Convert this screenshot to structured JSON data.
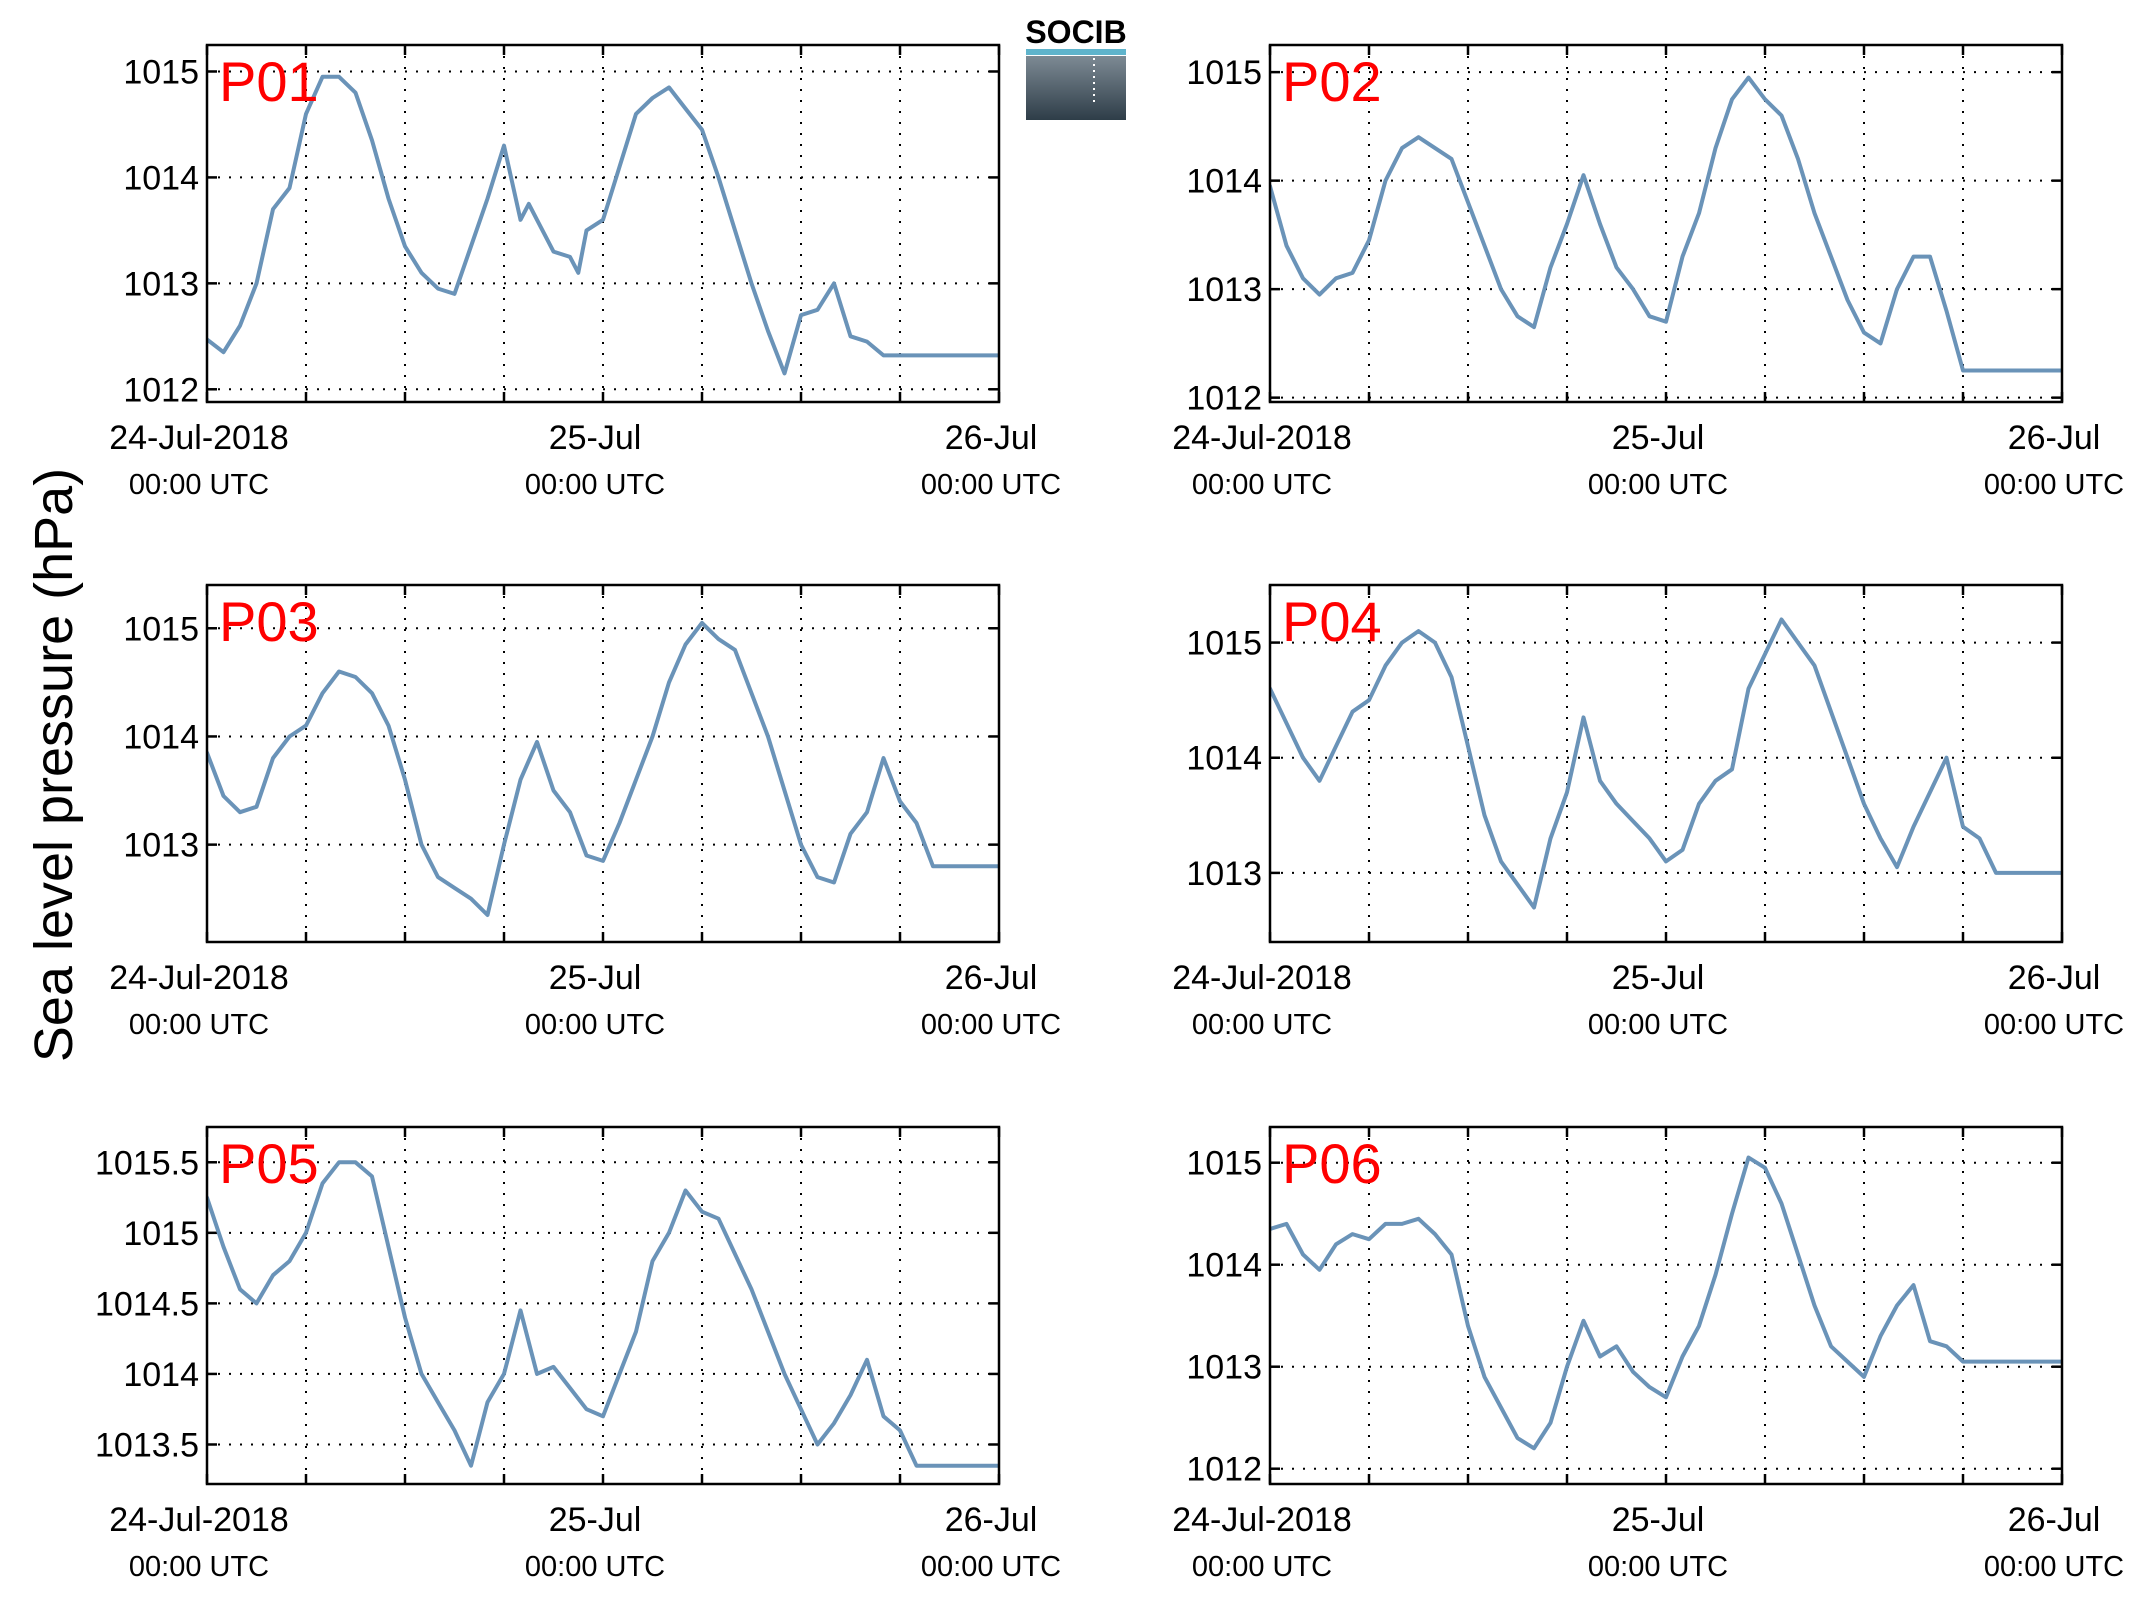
{
  "figure": {
    "ylabel": "Sea level pressure (hPa)",
    "logo_text": "SOCIB",
    "panel_label_color": "#ff0000",
    "line_color": "#6a93b8",
    "logo_colors": {
      "text": "#5fb4cc",
      "top": "#7d8a94",
      "bottom": "#2e3d48",
      "band": "#5fb4cc"
    }
  },
  "chart_data": [
    {
      "type": "line",
      "label": "P01",
      "title": "",
      "xlabel": "",
      "ylabel": "Sea level pressure (hPa)",
      "xlim": [
        0,
        48
      ],
      "ylim": [
        1011.88,
        1015.25
      ],
      "xticks": [
        0,
        24,
        48
      ],
      "xtick_labels": [
        [
          "24-Jul-2018",
          "00:00 UTC"
        ],
        [
          "25-Jul",
          "00:00 UTC"
        ],
        [
          "26-Jul",
          "00:00 UTC"
        ]
      ],
      "yticks": [
        1012,
        1013,
        1014,
        1015
      ],
      "ytick_labels": [
        "1012",
        "1013",
        "1014",
        "1015"
      ],
      "grid": true,
      "x_unit": "hours since 24-Jul-2018 00:00 UTC",
      "series": [
        {
          "x": [
            0,
            1,
            2,
            3,
            4,
            5,
            6,
            7,
            8,
            9,
            10,
            11,
            12,
            13,
            14,
            15,
            16,
            17,
            18,
            19,
            19.5,
            20,
            21,
            22,
            22.5,
            23,
            24,
            25,
            26,
            27,
            28,
            29,
            30,
            31,
            32,
            33,
            34,
            35,
            36,
            37,
            38,
            39,
            40,
            41,
            42,
            43,
            44,
            45,
            46,
            47,
            48
          ],
          "y": [
            1012.47,
            1012.35,
            1012.6,
            1013.0,
            1013.7,
            1013.9,
            1014.6,
            1014.95,
            1014.95,
            1014.8,
            1014.35,
            1013.8,
            1013.35,
            1013.1,
            1012.95,
            1012.9,
            1013.35,
            1013.8,
            1014.3,
            1013.6,
            1013.75,
            1013.6,
            1013.3,
            1013.25,
            1013.1,
            1013.5,
            1013.6,
            1014.1,
            1014.6,
            1014.75,
            1014.85,
            1014.65,
            1014.45,
            1014.0,
            1013.5,
            1013.0,
            1012.55,
            1012.15,
            1012.7,
            1012.75,
            1013.0,
            1012.5,
            1012.45,
            1012.32,
            1012.32,
            1012.32,
            1012.32,
            1012.32,
            1012.32,
            1012.32,
            1012.32
          ]
        }
      ]
    },
    {
      "type": "line",
      "label": "P02",
      "title": "",
      "xlabel": "",
      "ylabel": "Sea level pressure (hPa)",
      "xlim": [
        0,
        48
      ],
      "ylim": [
        1011.96,
        1015.25
      ],
      "xticks": [
        0,
        24,
        48
      ],
      "xtick_labels": [
        [
          "24-Jul-2018",
          "00:00 UTC"
        ],
        [
          "25-Jul",
          "00:00 UTC"
        ],
        [
          "26-Jul",
          "00:00 UTC"
        ]
      ],
      "yticks": [
        1012,
        1013,
        1014,
        1015
      ],
      "ytick_labels": [
        "1012",
        "1013",
        "1014",
        "1015"
      ],
      "grid": true,
      "x_unit": "hours since 24-Jul-2018 00:00 UTC",
      "series": [
        {
          "x": [
            0,
            1,
            2,
            3,
            4,
            5,
            6,
            7,
            8,
            9,
            10,
            11,
            12,
            13,
            14,
            15,
            16,
            17,
            18,
            19,
            20,
            21,
            22,
            23,
            24,
            25,
            26,
            27,
            28,
            29,
            30,
            31,
            32,
            33,
            34,
            35,
            36,
            37,
            38,
            39,
            40,
            41,
            42,
            43,
            44,
            45,
            46,
            47,
            48
          ],
          "y": [
            1013.95,
            1013.4,
            1013.1,
            1012.95,
            1013.1,
            1013.15,
            1013.45,
            1014.0,
            1014.3,
            1014.4,
            1014.3,
            1014.2,
            1013.8,
            1013.4,
            1013.0,
            1012.75,
            1012.65,
            1013.2,
            1013.6,
            1014.05,
            1013.6,
            1013.2,
            1013.0,
            1012.75,
            1012.7,
            1013.3,
            1013.7,
            1014.3,
            1014.75,
            1014.95,
            1014.75,
            1014.6,
            1014.2,
            1013.7,
            1013.3,
            1012.9,
            1012.6,
            1012.5,
            1013.0,
            1013.3,
            1013.3,
            1012.8,
            1012.25,
            1012.25,
            1012.25,
            1012.25,
            1012.25,
            1012.25,
            1012.25
          ]
        }
      ]
    },
    {
      "type": "line",
      "label": "P03",
      "title": "",
      "xlabel": "",
      "ylabel": "Sea level pressure (hPa)",
      "xlim": [
        0,
        48
      ],
      "ylim": [
        1012.1,
        1015.4
      ],
      "xticks": [
        0,
        24,
        48
      ],
      "xtick_labels": [
        [
          "24-Jul-2018",
          "00:00 UTC"
        ],
        [
          "25-Jul",
          "00:00 UTC"
        ],
        [
          "26-Jul",
          "00:00 UTC"
        ]
      ],
      "yticks": [
        1013,
        1014,
        1015
      ],
      "ytick_labels": [
        "1013",
        "1014",
        "1015"
      ],
      "grid": true,
      "x_unit": "hours since 24-Jul-2018 00:00 UTC",
      "series": [
        {
          "x": [
            0,
            1,
            2,
            3,
            4,
            5,
            6,
            7,
            8,
            9,
            10,
            11,
            12,
            13,
            14,
            15,
            16,
            17,
            18,
            19,
            20,
            21,
            22,
            23,
            24,
            25,
            26,
            27,
            28,
            29,
            30,
            31,
            32,
            33,
            34,
            35,
            36,
            37,
            38,
            39,
            40,
            41,
            42,
            43,
            44,
            45,
            46,
            47,
            48
          ],
          "y": [
            1013.85,
            1013.45,
            1013.3,
            1013.35,
            1013.8,
            1014.0,
            1014.1,
            1014.4,
            1014.6,
            1014.55,
            1014.4,
            1014.1,
            1013.6,
            1013.0,
            1012.7,
            1012.6,
            1012.5,
            1012.35,
            1013.0,
            1013.6,
            1013.95,
            1013.5,
            1013.3,
            1012.9,
            1012.85,
            1013.2,
            1013.6,
            1014.0,
            1014.5,
            1014.85,
            1015.05,
            1014.9,
            1014.8,
            1014.4,
            1014.0,
            1013.5,
            1013.0,
            1012.7,
            1012.65,
            1013.1,
            1013.3,
            1013.8,
            1013.4,
            1013.2,
            1012.8,
            1012.8,
            1012.8,
            1012.8,
            1012.8
          ]
        }
      ]
    },
    {
      "type": "line",
      "label": "P04",
      "title": "",
      "xlabel": "",
      "ylabel": "Sea level pressure (hPa)",
      "xlim": [
        0,
        48
      ],
      "ylim": [
        1012.4,
        1015.5
      ],
      "xticks": [
        0,
        24,
        48
      ],
      "xtick_labels": [
        [
          "24-Jul-2018",
          "00:00 UTC"
        ],
        [
          "25-Jul",
          "00:00 UTC"
        ],
        [
          "26-Jul",
          "00:00 UTC"
        ]
      ],
      "yticks": [
        1013,
        1014,
        1015
      ],
      "ytick_labels": [
        "1013",
        "1014",
        "1015"
      ],
      "grid": true,
      "x_unit": "hours since 24-Jul-2018 00:00 UTC",
      "series": [
        {
          "x": [
            0,
            1,
            2,
            3,
            4,
            5,
            6,
            7,
            8,
            9,
            10,
            11,
            12,
            13,
            14,
            15,
            16,
            17,
            18,
            19,
            20,
            21,
            22,
            23,
            24,
            25,
            26,
            27,
            28,
            29,
            30,
            31,
            32,
            33,
            34,
            35,
            36,
            37,
            38,
            39,
            40,
            41,
            42,
            43,
            44,
            45,
            46,
            47,
            48
          ],
          "y": [
            1014.6,
            1014.3,
            1014.0,
            1013.8,
            1014.1,
            1014.4,
            1014.5,
            1014.8,
            1015.0,
            1015.1,
            1015.0,
            1014.7,
            1014.1,
            1013.5,
            1013.1,
            1012.9,
            1012.7,
            1013.3,
            1013.7,
            1014.35,
            1013.8,
            1013.6,
            1013.45,
            1013.3,
            1013.1,
            1013.2,
            1013.6,
            1013.8,
            1013.9,
            1014.6,
            1014.9,
            1015.2,
            1015.0,
            1014.8,
            1014.4,
            1014.0,
            1013.6,
            1013.3,
            1013.05,
            1013.4,
            1013.7,
            1014.0,
            1013.4,
            1013.3,
            1013.0,
            1013.0,
            1013.0,
            1013.0,
            1013.0
          ]
        }
      ]
    },
    {
      "type": "line",
      "label": "P05",
      "title": "",
      "xlabel": "",
      "ylabel": "Sea level pressure (hPa)",
      "xlim": [
        0,
        48
      ],
      "ylim": [
        1013.22,
        1015.75
      ],
      "xticks": [
        0,
        24,
        48
      ],
      "xtick_labels": [
        [
          "24-Jul-2018",
          "00:00 UTC"
        ],
        [
          "25-Jul",
          "00:00 UTC"
        ],
        [
          "26-Jul",
          "00:00 UTC"
        ]
      ],
      "yticks": [
        1013.5,
        1014,
        1014.5,
        1015,
        1015.5
      ],
      "ytick_labels": [
        "1013.5",
        "1014",
        "1014.5",
        "1015",
        "1015.5"
      ],
      "grid": true,
      "x_unit": "hours since 24-Jul-2018 00:00 UTC",
      "series": [
        {
          "x": [
            0,
            1,
            2,
            3,
            4,
            5,
            6,
            7,
            8,
            9,
            10,
            11,
            12,
            13,
            14,
            15,
            16,
            17,
            18,
            19,
            20,
            21,
            22,
            23,
            24,
            25,
            26,
            27,
            28,
            29,
            30,
            31,
            32,
            33,
            34,
            35,
            36,
            37,
            38,
            39,
            40,
            41,
            42,
            43,
            44,
            45,
            46,
            47,
            48
          ],
          "y": [
            1015.25,
            1014.9,
            1014.6,
            1014.5,
            1014.7,
            1014.8,
            1015.0,
            1015.35,
            1015.5,
            1015.5,
            1015.4,
            1014.9,
            1014.4,
            1014.0,
            1013.8,
            1013.6,
            1013.35,
            1013.8,
            1014.0,
            1014.45,
            1014.0,
            1014.05,
            1013.9,
            1013.75,
            1013.7,
            1014.0,
            1014.3,
            1014.8,
            1015.0,
            1015.3,
            1015.15,
            1015.1,
            1014.85,
            1014.6,
            1014.3,
            1014.0,
            1013.75,
            1013.5,
            1013.65,
            1013.85,
            1014.1,
            1013.7,
            1013.6,
            1013.35,
            1013.35,
            1013.35,
            1013.35,
            1013.35,
            1013.35
          ]
        }
      ]
    },
    {
      "type": "line",
      "label": "P06",
      "title": "",
      "xlabel": "",
      "ylabel": "Sea level pressure (hPa)",
      "xlim": [
        0,
        48
      ],
      "ylim": [
        1011.85,
        1015.35
      ],
      "xticks": [
        0,
        24,
        48
      ],
      "xtick_labels": [
        [
          "24-Jul-2018",
          "00:00 UTC"
        ],
        [
          "25-Jul",
          "00:00 UTC"
        ],
        [
          "26-Jul",
          "00:00 UTC"
        ]
      ],
      "yticks": [
        1012,
        1013,
        1014,
        1015
      ],
      "ytick_labels": [
        "1012",
        "1013",
        "1014",
        "1015"
      ],
      "grid": true,
      "x_unit": "hours since 24-Jul-2018 00:00 UTC",
      "series": [
        {
          "x": [
            0,
            1,
            2,
            3,
            4,
            5,
            6,
            7,
            8,
            9,
            10,
            11,
            12,
            13,
            14,
            15,
            16,
            17,
            18,
            19,
            20,
            21,
            22,
            23,
            24,
            25,
            26,
            27,
            28,
            29,
            30,
            31,
            32,
            33,
            34,
            35,
            36,
            37,
            38,
            39,
            40,
            41,
            42,
            43,
            44,
            45,
            46,
            47,
            48
          ],
          "y": [
            1014.35,
            1014.4,
            1014.1,
            1013.95,
            1014.2,
            1014.3,
            1014.25,
            1014.4,
            1014.4,
            1014.45,
            1014.3,
            1014.1,
            1013.4,
            1012.9,
            1012.6,
            1012.3,
            1012.2,
            1012.45,
            1013.0,
            1013.45,
            1013.1,
            1013.2,
            1012.95,
            1012.8,
            1012.7,
            1013.1,
            1013.4,
            1013.9,
            1014.5,
            1015.05,
            1014.95,
            1014.6,
            1014.1,
            1013.6,
            1013.2,
            1013.05,
            1012.9,
            1013.3,
            1013.6,
            1013.8,
            1013.25,
            1013.2,
            1013.05,
            1013.05,
            1013.05,
            1013.05,
            1013.05,
            1013.05,
            1013.05
          ]
        }
      ]
    }
  ]
}
